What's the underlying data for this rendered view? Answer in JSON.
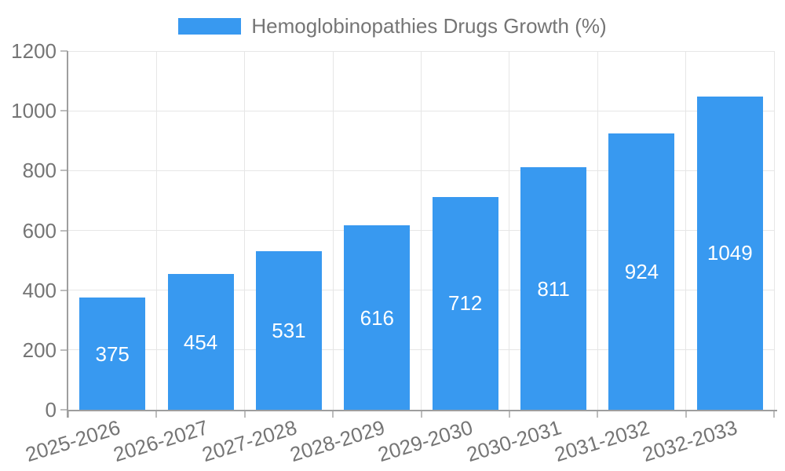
{
  "chart_data": {
    "type": "bar",
    "title": "Hemoglobinopathies Drugs Growth (%)",
    "legend_position": "top",
    "categories": [
      "2025-2026",
      "2026-2027",
      "2027-2028",
      "2028-2029",
      "2029-2030",
      "2030-2031",
      "2031-2032",
      "2032-2033"
    ],
    "values": [
      375,
      454,
      531,
      616,
      712,
      811,
      924,
      1049
    ],
    "xlabel": "",
    "ylabel": "",
    "ylim": [
      0,
      1200
    ],
    "yticks": [
      0,
      200,
      400,
      600,
      800,
      1000,
      1200
    ],
    "grid": true,
    "value_labels": "inside-center",
    "colors": {
      "bar": "#3899f0",
      "grid": "#e6e6e6",
      "axis": "#9e9e9e",
      "tick": "#bdbdbd",
      "text": "#757575",
      "value_text": "#ffffff"
    }
  }
}
